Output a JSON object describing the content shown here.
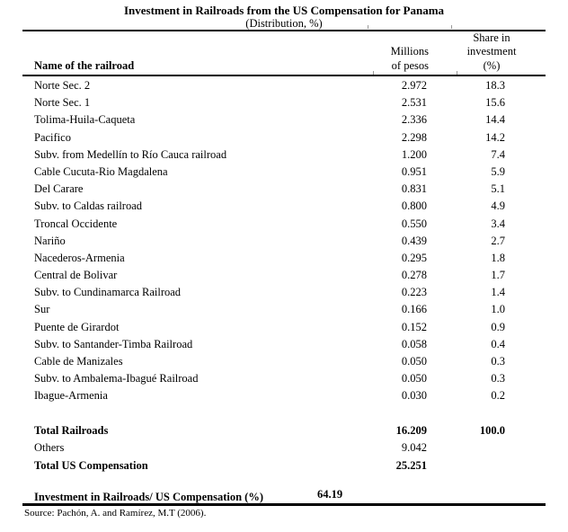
{
  "title": "Investment in Railroads from the US Compensation for Panama",
  "subtitle": "(Distribution, %)",
  "columns": {
    "name": "Name of the railroad",
    "millions": "Millions\nof pesos",
    "share": "Share in\ninvestment\n(%)"
  },
  "rows": [
    {
      "name": "Norte Sec. 2",
      "millions": "2.972",
      "share": "18.3"
    },
    {
      "name": "Norte Sec. 1",
      "millions": "2.531",
      "share": "15.6"
    },
    {
      "name": "Tolima-Huila-Caqueta",
      "millions": "2.336",
      "share": "14.4"
    },
    {
      "name": "Pacifico",
      "millions": "2.298",
      "share": "14.2"
    },
    {
      "name": "Subv. from Medellín to Río Cauca railroad",
      "millions": "1.200",
      "share": "7.4"
    },
    {
      "name": "Cable Cucuta-Rio Magdalena",
      "millions": "0.951",
      "share": "5.9"
    },
    {
      "name": "Del Carare",
      "millions": "0.831",
      "share": "5.1"
    },
    {
      "name": "Subv. to Caldas railroad",
      "millions": "0.800",
      "share": "4.9"
    },
    {
      "name": "Troncal Occidente",
      "millions": "0.550",
      "share": "3.4"
    },
    {
      "name": "Nariño",
      "millions": "0.439",
      "share": "2.7"
    },
    {
      "name": "Nacederos-Armenia",
      "millions": "0.295",
      "share": "1.8"
    },
    {
      "name": "Central de Bolivar",
      "millions": "0.278",
      "share": "1.7"
    },
    {
      "name": "Subv. to Cundinamarca Railroad",
      "millions": "0.223",
      "share": "1.4"
    },
    {
      "name": "Sur",
      "millions": "0.166",
      "share": "1.0"
    },
    {
      "name": "Puente de Girardot",
      "millions": "0.152",
      "share": "0.9"
    },
    {
      "name": "Subv. to Santander-Timba Railroad",
      "millions": "0.058",
      "share": "0.4"
    },
    {
      "name": "Cable de Manizales",
      "millions": "0.050",
      "share": "0.3"
    },
    {
      "name": "Subv. to Ambalema-Ibagué Railroad",
      "millions": "0.050",
      "share": "0.3"
    },
    {
      "name": "Ibague-Armenia",
      "millions": "0.030",
      "share": "0.2"
    }
  ],
  "totals": {
    "railroads": {
      "label": "Total Railroads",
      "millions": "16.209",
      "share": "100.0"
    },
    "others": {
      "label": "Others",
      "millions": "9.042",
      "share": ""
    },
    "us_compensation": {
      "label": "Total US Compensation",
      "millions": "25.251",
      "share": ""
    }
  },
  "ratio": {
    "label": "Investment in Railroads/ US Compensation (%)",
    "value": "64.19"
  },
  "source": "Source: Pachón, A. and Ramírez, M.T (2006).",
  "colors": {
    "background": "#ffffff",
    "text": "#000000",
    "rule": "#000000",
    "tick": "#9a9a9a"
  }
}
